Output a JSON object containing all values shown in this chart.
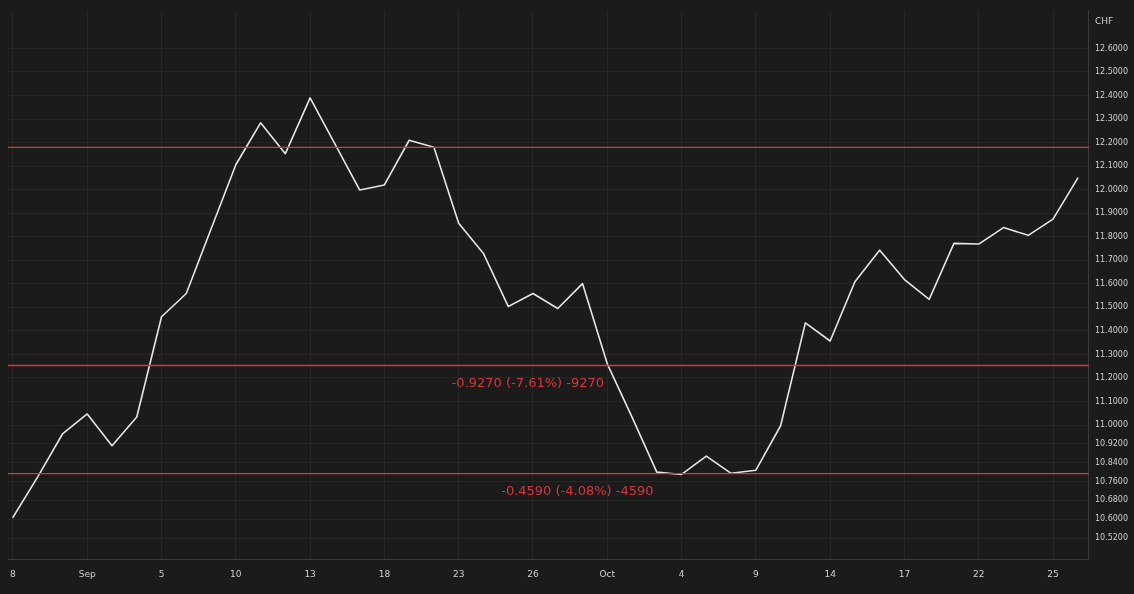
{
  "chart_data": {
    "type": "line",
    "ylabel": "CHF",
    "categories": [
      "8",
      null,
      null,
      "Sep",
      null,
      null,
      "5",
      null,
      null,
      "10",
      null,
      null,
      "13",
      null,
      null,
      "18",
      null,
      null,
      "23",
      null,
      null,
      "26",
      null,
      null,
      "Oct",
      null,
      null,
      "4",
      null,
      null,
      "9",
      null,
      null,
      "14",
      null,
      null,
      "17",
      null,
      null,
      "22",
      null,
      null,
      "25",
      null
    ],
    "series": [
      {
        "color": "#e6e6e6",
        "values": [
          10.608,
          10.78,
          10.962,
          11.047,
          10.912,
          11.034,
          11.46,
          11.559,
          11.833,
          12.106,
          12.284,
          12.153,
          12.39,
          12.195,
          11.999,
          12.02,
          12.21,
          12.18,
          11.857,
          11.729,
          11.504,
          11.559,
          11.495,
          11.601,
          11.26,
          11.034,
          10.8,
          10.79,
          10.868,
          10.795,
          10.808,
          10.997,
          11.434,
          11.357,
          11.609,
          11.743,
          11.618,
          11.534,
          11.772,
          11.769,
          11.839,
          11.806,
          11.875,
          12.049
        ]
      }
    ],
    "ylim": [
      10.43,
      12.76
    ],
    "yticks": [
      {
        "value": 10.52,
        "label": "10.5200"
      },
      {
        "value": 10.6,
        "label": "10.6000"
      },
      {
        "value": 10.68,
        "label": "10.6800"
      },
      {
        "value": 10.76,
        "label": "10.7600"
      },
      {
        "value": 10.84,
        "label": "10.8400"
      },
      {
        "value": 10.92,
        "label": "10.9200"
      },
      {
        "value": 11.0,
        "label": "11.0000"
      },
      {
        "value": 11.1,
        "label": "11.1000"
      },
      {
        "value": 11.2,
        "label": "11.2000"
      },
      {
        "value": 11.3,
        "label": "11.3000"
      },
      {
        "value": 11.4,
        "label": "11.4000"
      },
      {
        "value": 11.5,
        "label": "11.5000"
      },
      {
        "value": 11.6,
        "label": "11.6000"
      },
      {
        "value": 11.7,
        "label": "11.7000"
      },
      {
        "value": 11.8,
        "label": "11.8000"
      },
      {
        "value": 11.9,
        "label": "11.9000"
      },
      {
        "value": 12.0,
        "label": "12.0000"
      },
      {
        "value": 12.1,
        "label": "12.1000"
      },
      {
        "value": 12.2,
        "label": "12.2000"
      },
      {
        "value": 12.3,
        "label": "12.3000"
      },
      {
        "value": 12.4,
        "label": "12.4000"
      },
      {
        "value": 12.5,
        "label": "12.5000"
      },
      {
        "value": 12.6,
        "label": "12.6000"
      }
    ],
    "ref_lines": [
      {
        "axis": "y",
        "value": 12.18,
        "color": "#d9363e"
      },
      {
        "axis": "y",
        "value": 11.253,
        "color": "#d9363e"
      },
      {
        "axis": "y",
        "value": 10.794,
        "color": "#d9363e"
      }
    ],
    "annotations": [
      "-0.9270 (-7.61%) -9270",
      "-0.4590 (-4.08%) -4590"
    ],
    "grid": true,
    "marker": "none",
    "line_style": "solid"
  }
}
